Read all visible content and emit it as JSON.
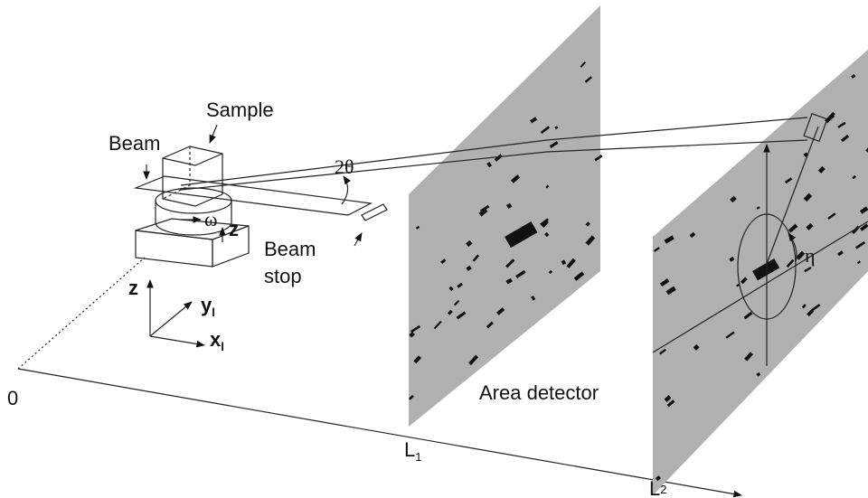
{
  "labels": {
    "sample": "Sample",
    "beam": "Beam",
    "two_theta": "2θ",
    "omega": "ω",
    "z_stage": "z",
    "beam_stop": [
      "Beam",
      "stop"
    ],
    "eta": "η",
    "origin": "0",
    "area_detector": "Area detector"
  },
  "axes_triad": {
    "z": "z",
    "y": {
      "text": "y",
      "sub": "l"
    },
    "x": {
      "text": "x",
      "sub": "l"
    }
  },
  "positions": {
    "L1": {
      "text": "L",
      "sub": "1"
    },
    "L2": {
      "text": "L",
      "sub": "2"
    }
  }
}
